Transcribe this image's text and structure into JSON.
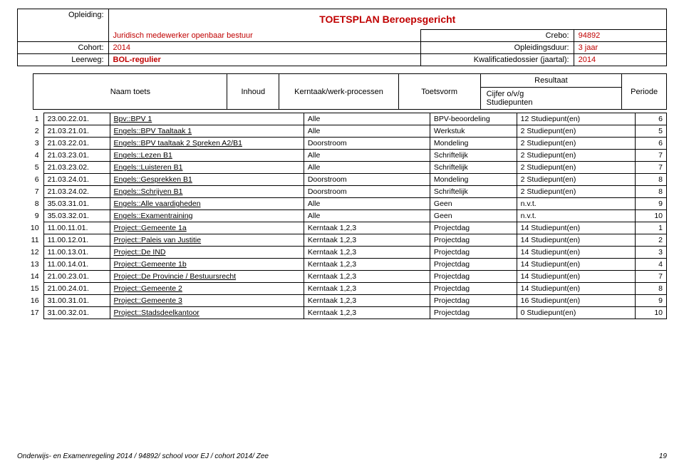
{
  "title": "TOETSPLAN Beroepsgericht",
  "meta": {
    "opleiding_label": "Opleiding:",
    "opleiding_value": "Juridisch medewerker openbaar bestuur",
    "crebo_label": "Crebo:",
    "crebo_value": "94892",
    "cohort_label": "Cohort:",
    "cohort_value": "2014",
    "opduur_label": "Opleidingsduur:",
    "opduur_value": "3 jaar",
    "leerweg_label": "Leerweg:",
    "leerweg_value": "BOL-regulier",
    "kwal_label": "Kwalificatiedossier (jaartal):",
    "kwal_value": "2014"
  },
  "header": {
    "naam": "Naam toets",
    "inhoud": "Inhoud",
    "kerntaak": "Kerntaak/werk-processen",
    "toetsvorm": "Toetsvorm",
    "resultaat": "Resultaat",
    "cijfer": "Cijfer o/v/g",
    "studiepunten": "Studiepunten",
    "periode": "Periode"
  },
  "rows": [
    {
      "n": "1",
      "code": "23.00.22.01.",
      "inhoud": "Bpv::BPV 1",
      "kern": "Alle",
      "tv": "BPV-beoordeling",
      "res": "12 Studiepunt(en)",
      "per": "6"
    },
    {
      "n": "2",
      "code": "21.03.21.01.",
      "inhoud": "Engels::BPV Taaltaak 1",
      "kern": "Alle",
      "tv": "Werkstuk",
      "res": "2 Studiepunt(en)",
      "per": "5"
    },
    {
      "n": "3",
      "code": "21.03.22.01.",
      "inhoud": "Engels::BPV taaltaak 2 Spreken A2/B1",
      "kern": "Doorstroom",
      "tv": "Mondeling",
      "res": "2 Studiepunt(en)",
      "per": "6"
    },
    {
      "n": "4",
      "code": "21.03.23.01.",
      "inhoud": "Engels::Lezen B1",
      "kern": "Alle",
      "tv": "Schriftelijk",
      "res": "2 Studiepunt(en)",
      "per": "7"
    },
    {
      "n": "5",
      "code": "21.03.23.02.",
      "inhoud": "Engels::Luisteren B1",
      "kern": "Alle",
      "tv": "Schriftelijk",
      "res": "2 Studiepunt(en)",
      "per": "7"
    },
    {
      "n": "6",
      "code": "21.03.24.01.",
      "inhoud": "Engels::Gesprekken B1",
      "kern": "Doorstroom",
      "tv": "Mondeling",
      "res": "2 Studiepunt(en)",
      "per": "8"
    },
    {
      "n": "7",
      "code": "21.03.24.02.",
      "inhoud": "Engels::Schrijven B1",
      "kern": "Doorstroom",
      "tv": "Schriftelijk",
      "res": "2 Studiepunt(en)",
      "per": "8"
    },
    {
      "n": "8",
      "code": "35.03.31.01.",
      "inhoud": "Engels::Alle vaardigheden",
      "kern": "Alle",
      "tv": "Geen",
      "res": "n.v.t.",
      "per": "9"
    },
    {
      "n": "9",
      "code": "35.03.32.01.",
      "inhoud": "Engels::Examentraining",
      "kern": "Alle",
      "tv": "Geen",
      "res": "n.v.t.",
      "per": "10"
    },
    {
      "n": "10",
      "code": "11.00.11.01.",
      "inhoud": "Project::Gemeente 1a",
      "kern": "Kerntaak 1,2,3",
      "tv": "Projectdag",
      "res": "14 Studiepunt(en)",
      "per": "1"
    },
    {
      "n": "11",
      "code": "11.00.12.01.",
      "inhoud": "Project::Paleis van Justitie",
      "kern": "Kerntaak 1,2,3",
      "tv": "Projectdag",
      "res": "14 Studiepunt(en)",
      "per": "2"
    },
    {
      "n": "12",
      "code": "11.00.13.01.",
      "inhoud": "Project::De IND",
      "kern": "Kerntaak 1,2,3",
      "tv": "Projectdag",
      "res": "14 Studiepunt(en)",
      "per": "3"
    },
    {
      "n": "13",
      "code": "11.00.14.01.",
      "inhoud": "Project::Gemeente 1b",
      "kern": "Kerntaak 1,2,3",
      "tv": "Projectdag",
      "res": "14 Studiepunt(en)",
      "per": "4"
    },
    {
      "n": "14",
      "code": "21.00.23.01.",
      "inhoud": "Project::De Provincie / Bestuursrecht",
      "kern": "Kerntaak 1,2,3",
      "tv": "Projectdag",
      "res": "14 Studiepunt(en)",
      "per": "7"
    },
    {
      "n": "15",
      "code": "21.00.24.01.",
      "inhoud": "Project::Gemeente 2",
      "kern": "Kerntaak 1,2,3",
      "tv": "Projectdag",
      "res": "14 Studiepunt(en)",
      "per": "8"
    },
    {
      "n": "16",
      "code": "31.00.31.01.",
      "inhoud": "Project::Gemeente 3",
      "kern": "Kerntaak 1,2,3",
      "tv": "Projectdag",
      "res": "16 Studiepunt(en)",
      "per": "9"
    },
    {
      "n": "17",
      "code": "31.00.32.01.",
      "inhoud": "Project::Stadsdeelkantoor",
      "kern": "Kerntaak 1,2,3",
      "tv": "Projectdag",
      "res": "0 Studiepunt(en)",
      "per": "10"
    }
  ],
  "footer": {
    "text": "Onderwijs- en Examenregeling 2014 / 94892/ school voor EJ / cohort 2014/ Zee",
    "page": "19"
  },
  "colors": {
    "accent": "#c00000",
    "border": "#000000",
    "bg": "#ffffff"
  }
}
